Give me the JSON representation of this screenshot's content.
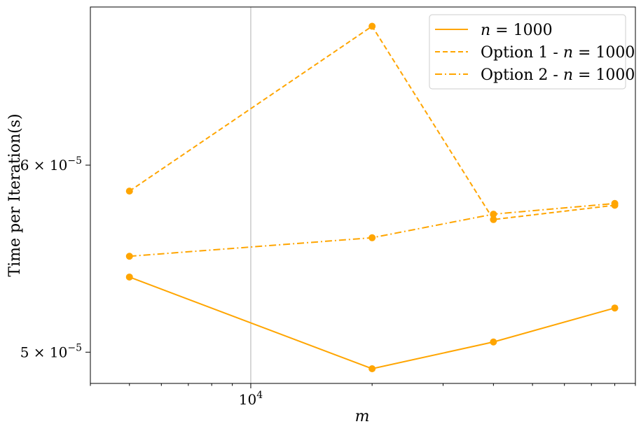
{
  "chart_data": {
    "type": "line",
    "title": "",
    "xlabel": "m",
    "ylabel": "Time per Iteration(s)",
    "xscale": "log",
    "yscale": "log",
    "xlim": [
      4000,
      90000
    ],
    "ylim": [
      4.85e-05,
      7e-05
    ],
    "x": [
      5000,
      20000,
      40000,
      80000
    ],
    "x_ticks": [
      {
        "value": 10000,
        "mantissa": "10",
        "exponent": "4"
      }
    ],
    "y_ticks": [
      {
        "value": 5e-05,
        "mantissa": "5 × 10",
        "exponent": "−5"
      },
      {
        "value": 6e-05,
        "mantissa": "6 × 10",
        "exponent": "−5"
      }
    ],
    "grid": "major only",
    "legend_position": "top-right",
    "series": [
      {
        "name": "n = 1000",
        "name_parts": [
          "",
          "n",
          " = 1000"
        ],
        "linestyle": "solid",
        "values": [
          5.38e-05,
          4.92e-05,
          5.05e-05,
          5.22e-05
        ]
      },
      {
        "name": "Option 1 - n = 1000",
        "name_parts": [
          "Option 1 - ",
          "n",
          " = 1000"
        ],
        "linestyle": "dashed",
        "values": [
          5.85e-05,
          6.87e-05,
          5.69e-05,
          5.77e-05
        ]
      },
      {
        "name": "Option 2 - n = 1000",
        "name_parts": [
          "Option 2 - ",
          "n",
          " = 1000"
        ],
        "linestyle": "dashdot",
        "values": [
          5.49e-05,
          5.59e-05,
          5.72e-05,
          5.78e-05
        ]
      }
    ],
    "colors": {
      "series": "#FFA500",
      "grid": "#b0b0b0",
      "axis": "#000000",
      "legend_border": "#cccccc"
    }
  }
}
